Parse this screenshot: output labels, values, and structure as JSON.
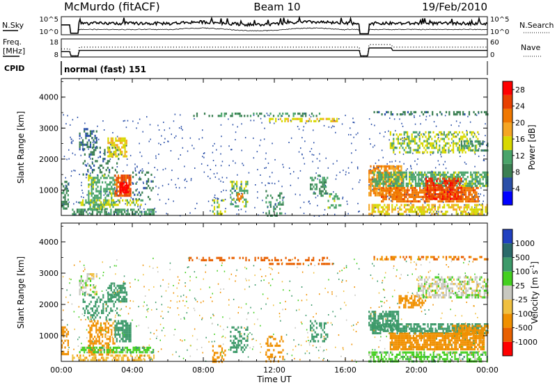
{
  "header": {
    "title": "McMurdo (fitACF)",
    "beam": "Beam 10",
    "date": "19/Feb/2010"
  },
  "noise_panel": {
    "left_label": "N.Sky",
    "left_ticks": [
      "10^5",
      "10^0"
    ],
    "right_label": "N.Search",
    "right_ticks": [
      "10^5",
      "10^0"
    ]
  },
  "freq_panel": {
    "left_label_line1": "Freq.",
    "left_label_line2": "[MHz]",
    "left_ticks": [
      "18",
      "8"
    ],
    "right_label": "Nave",
    "right_ticks": [
      "60",
      "0"
    ]
  },
  "cpid": {
    "label": "CPID",
    "mode": "normal (fast) 151"
  },
  "colors": {
    "power": [
      "#0000ff",
      "#2a4fa8",
      "#3b7f52",
      "#4aa46a",
      "#d8d800",
      "#f5a623",
      "#f07800",
      "#e84000",
      "#ff0000"
    ],
    "velocity": [
      "#2040c0",
      "#2a6a6a",
      "#3d9a6a",
      "#44d020",
      "#c8c8c0",
      "#f0c040",
      "#f09000",
      "#e86000",
      "#ff0000"
    ]
  },
  "chart_data": [
    {
      "type": "heatmap",
      "panel": "power",
      "ylabel": "Slant Range [km]",
      "xlabel": "Time UT",
      "x_ticks": [
        "00:00",
        "04:00",
        "08:00",
        "12:00",
        "16:00",
        "20:00",
        "00:00"
      ],
      "xlim": [
        0,
        24
      ],
      "y_ticks": [
        "1000",
        "2000",
        "3000",
        "4000"
      ],
      "ylim": [
        180,
        4600
      ],
      "colorbar": {
        "label": "Power [dB]",
        "ticks": [
          "4",
          "8",
          "12",
          "16",
          "20",
          "24",
          "28"
        ],
        "range": [
          0,
          30
        ]
      },
      "patches": [
        {
          "t0": 0.0,
          "t1": 0.4,
          "r0": 400,
          "r1": 1300,
          "v": 9,
          "d": 0.6
        },
        {
          "t0": 1.0,
          "t1": 2.0,
          "r0": 2300,
          "r1": 3000,
          "v": 7,
          "d": 0.45
        },
        {
          "t0": 1.2,
          "t1": 3.2,
          "r0": 1500,
          "r1": 2400,
          "v": 8,
          "d": 0.25
        },
        {
          "t0": 1.5,
          "t1": 3.0,
          "r0": 400,
          "r1": 1500,
          "v": 12,
          "d": 0.55
        },
        {
          "t0": 2.6,
          "t1": 3.7,
          "r0": 2100,
          "r1": 2700,
          "v": 16,
          "d": 0.6
        },
        {
          "t0": 3.0,
          "t1": 3.9,
          "r0": 800,
          "r1": 1500,
          "v": 24,
          "d": 0.8
        },
        {
          "t0": 3.3,
          "t1": 3.8,
          "r0": 950,
          "r1": 1250,
          "v": 29,
          "d": 0.85
        },
        {
          "t0": 1.0,
          "t1": 4.6,
          "r0": 500,
          "r1": 700,
          "v": 14,
          "d": 0.5
        },
        {
          "t0": 0.6,
          "t1": 5.2,
          "r0": 220,
          "r1": 400,
          "v": 10,
          "d": 0.6
        },
        {
          "t0": 4.0,
          "t1": 5.2,
          "r0": 700,
          "r1": 1600,
          "v": 8,
          "d": 0.2
        },
        {
          "t0": 8.5,
          "t1": 9.2,
          "r0": 200,
          "r1": 700,
          "v": 14,
          "d": 0.35
        },
        {
          "t0": 9.5,
          "t1": 10.5,
          "r0": 500,
          "r1": 1300,
          "v": 12,
          "d": 0.4
        },
        {
          "t0": 9.9,
          "t1": 10.2,
          "r0": 650,
          "r1": 900,
          "v": 22,
          "d": 0.7
        },
        {
          "t0": 11.5,
          "t1": 12.5,
          "r0": 200,
          "r1": 1000,
          "v": 10,
          "d": 0.3
        },
        {
          "t0": 14.0,
          "t1": 15.0,
          "r0": 800,
          "r1": 1500,
          "v": 10,
          "d": 0.45
        },
        {
          "t0": 15.0,
          "t1": 15.7,
          "r0": 400,
          "r1": 900,
          "v": 12,
          "d": 0.4
        },
        {
          "t0": 7.0,
          "t1": 15.0,
          "r0": 3400,
          "r1": 3500,
          "v": 10,
          "d": 0.25
        },
        {
          "t0": 11.7,
          "t1": 15.5,
          "r0": 3250,
          "r1": 3330,
          "v": 16,
          "d": 0.5
        },
        {
          "t0": 17.3,
          "t1": 19.2,
          "r0": 800,
          "r1": 1800,
          "v": 20,
          "d": 0.75
        },
        {
          "t0": 17.5,
          "t1": 24.0,
          "r0": 1100,
          "r1": 1600,
          "v": 12,
          "d": 0.7
        },
        {
          "t0": 18.0,
          "t1": 23.5,
          "r0": 600,
          "r1": 1100,
          "v": 22,
          "d": 0.75
        },
        {
          "t0": 20.5,
          "t1": 22.5,
          "r0": 700,
          "r1": 1400,
          "v": 26,
          "d": 0.7
        },
        {
          "t0": 17.3,
          "t1": 24.0,
          "r0": 200,
          "r1": 550,
          "v": 16,
          "d": 0.55
        },
        {
          "t0": 18.5,
          "t1": 23.5,
          "r0": 2200,
          "r1": 2900,
          "v": 14,
          "d": 0.45
        },
        {
          "t0": 17.5,
          "t1": 24.0,
          "r0": 3450,
          "r1": 3550,
          "v": 8,
          "d": 0.4
        },
        {
          "t0": 22.5,
          "t1": 24.0,
          "r0": 2300,
          "r1": 2600,
          "v": 10,
          "d": 0.5
        }
      ]
    },
    {
      "type": "heatmap",
      "panel": "velocity",
      "ylabel": "Slant Range [km]",
      "xlabel": "Time UT",
      "x_ticks": [
        "00:00",
        "04:00",
        "08:00",
        "12:00",
        "16:00",
        "20:00",
        "00:00"
      ],
      "xlim": [
        0,
        24
      ],
      "y_ticks": [
        "1000",
        "2000",
        "3000",
        "4000"
      ],
      "ylim": [
        180,
        4600
      ],
      "colorbar": {
        "label": "Velocity [m s^-1]",
        "ticks": [
          "1000",
          "500",
          "100",
          "25",
          "-25",
          "-100",
          "-500",
          "-1000"
        ],
        "range": [
          -1000,
          1000
        ]
      },
      "patches": [
        {
          "t0": 0.0,
          "t1": 0.4,
          "r0": 400,
          "r1": 1300,
          "v": -200,
          "d": 0.55
        },
        {
          "t0": 1.0,
          "t1": 2.0,
          "r0": 2300,
          "r1": 3000,
          "v": 10,
          "d": 0.45
        },
        {
          "t0": 1.2,
          "t1": 3.2,
          "r0": 1500,
          "r1": 2400,
          "v": 300,
          "d": 0.3
        },
        {
          "t0": 1.5,
          "t1": 3.0,
          "r0": 400,
          "r1": 1500,
          "v": -150,
          "d": 0.45
        },
        {
          "t0": 2.6,
          "t1": 3.7,
          "r0": 2100,
          "r1": 2700,
          "v": 400,
          "d": 0.6
        },
        {
          "t0": 3.0,
          "t1": 3.9,
          "r0": 800,
          "r1": 1500,
          "v": 450,
          "d": 0.75
        },
        {
          "t0": 1.0,
          "t1": 5.2,
          "r0": 500,
          "r1": 650,
          "v": 60,
          "d": 0.7
        },
        {
          "t0": 0.6,
          "t1": 5.2,
          "r0": 220,
          "r1": 400,
          "v": -80,
          "d": 0.5
        },
        {
          "t0": 8.5,
          "t1": 9.2,
          "r0": 200,
          "r1": 700,
          "v": -300,
          "d": 0.35
        },
        {
          "t0": 9.5,
          "t1": 10.5,
          "r0": 500,
          "r1": 1300,
          "v": 300,
          "d": 0.4
        },
        {
          "t0": 11.5,
          "t1": 12.5,
          "r0": 200,
          "r1": 1000,
          "v": -150,
          "d": 0.3
        },
        {
          "t0": 14.0,
          "t1": 15.0,
          "r0": 800,
          "r1": 1500,
          "v": 400,
          "d": 0.4
        },
        {
          "t0": 7.0,
          "t1": 15.0,
          "r0": 3440,
          "r1": 3520,
          "v": -600,
          "d": 0.35
        },
        {
          "t0": 11.7,
          "t1": 15.5,
          "r0": 3260,
          "r1": 3330,
          "v": -700,
          "d": 0.5
        },
        {
          "t0": 17.3,
          "t1": 19.0,
          "r0": 1200,
          "r1": 1800,
          "v": 400,
          "d": 0.7
        },
        {
          "t0": 17.5,
          "t1": 24.0,
          "r0": 1100,
          "r1": 1400,
          "v": 350,
          "d": 0.7
        },
        {
          "t0": 18.5,
          "t1": 23.8,
          "r0": 600,
          "r1": 1100,
          "v": -200,
          "d": 0.85
        },
        {
          "t0": 22.0,
          "t1": 24.0,
          "r0": 1050,
          "r1": 1350,
          "v": -250,
          "d": 0.7
        },
        {
          "t0": 19.0,
          "t1": 20.5,
          "r0": 1900,
          "r1": 2300,
          "v": -300,
          "d": 0.55
        },
        {
          "t0": 20.0,
          "t1": 24.0,
          "r0": 2200,
          "r1": 2900,
          "v": 5,
          "d": 0.55
        },
        {
          "t0": 17.3,
          "t1": 24.0,
          "r0": 200,
          "r1": 500,
          "v": 60,
          "d": 0.55
        },
        {
          "t0": 17.5,
          "t1": 24.0,
          "r0": 3450,
          "r1": 3550,
          "v": -500,
          "d": 0.35
        }
      ]
    }
  ]
}
